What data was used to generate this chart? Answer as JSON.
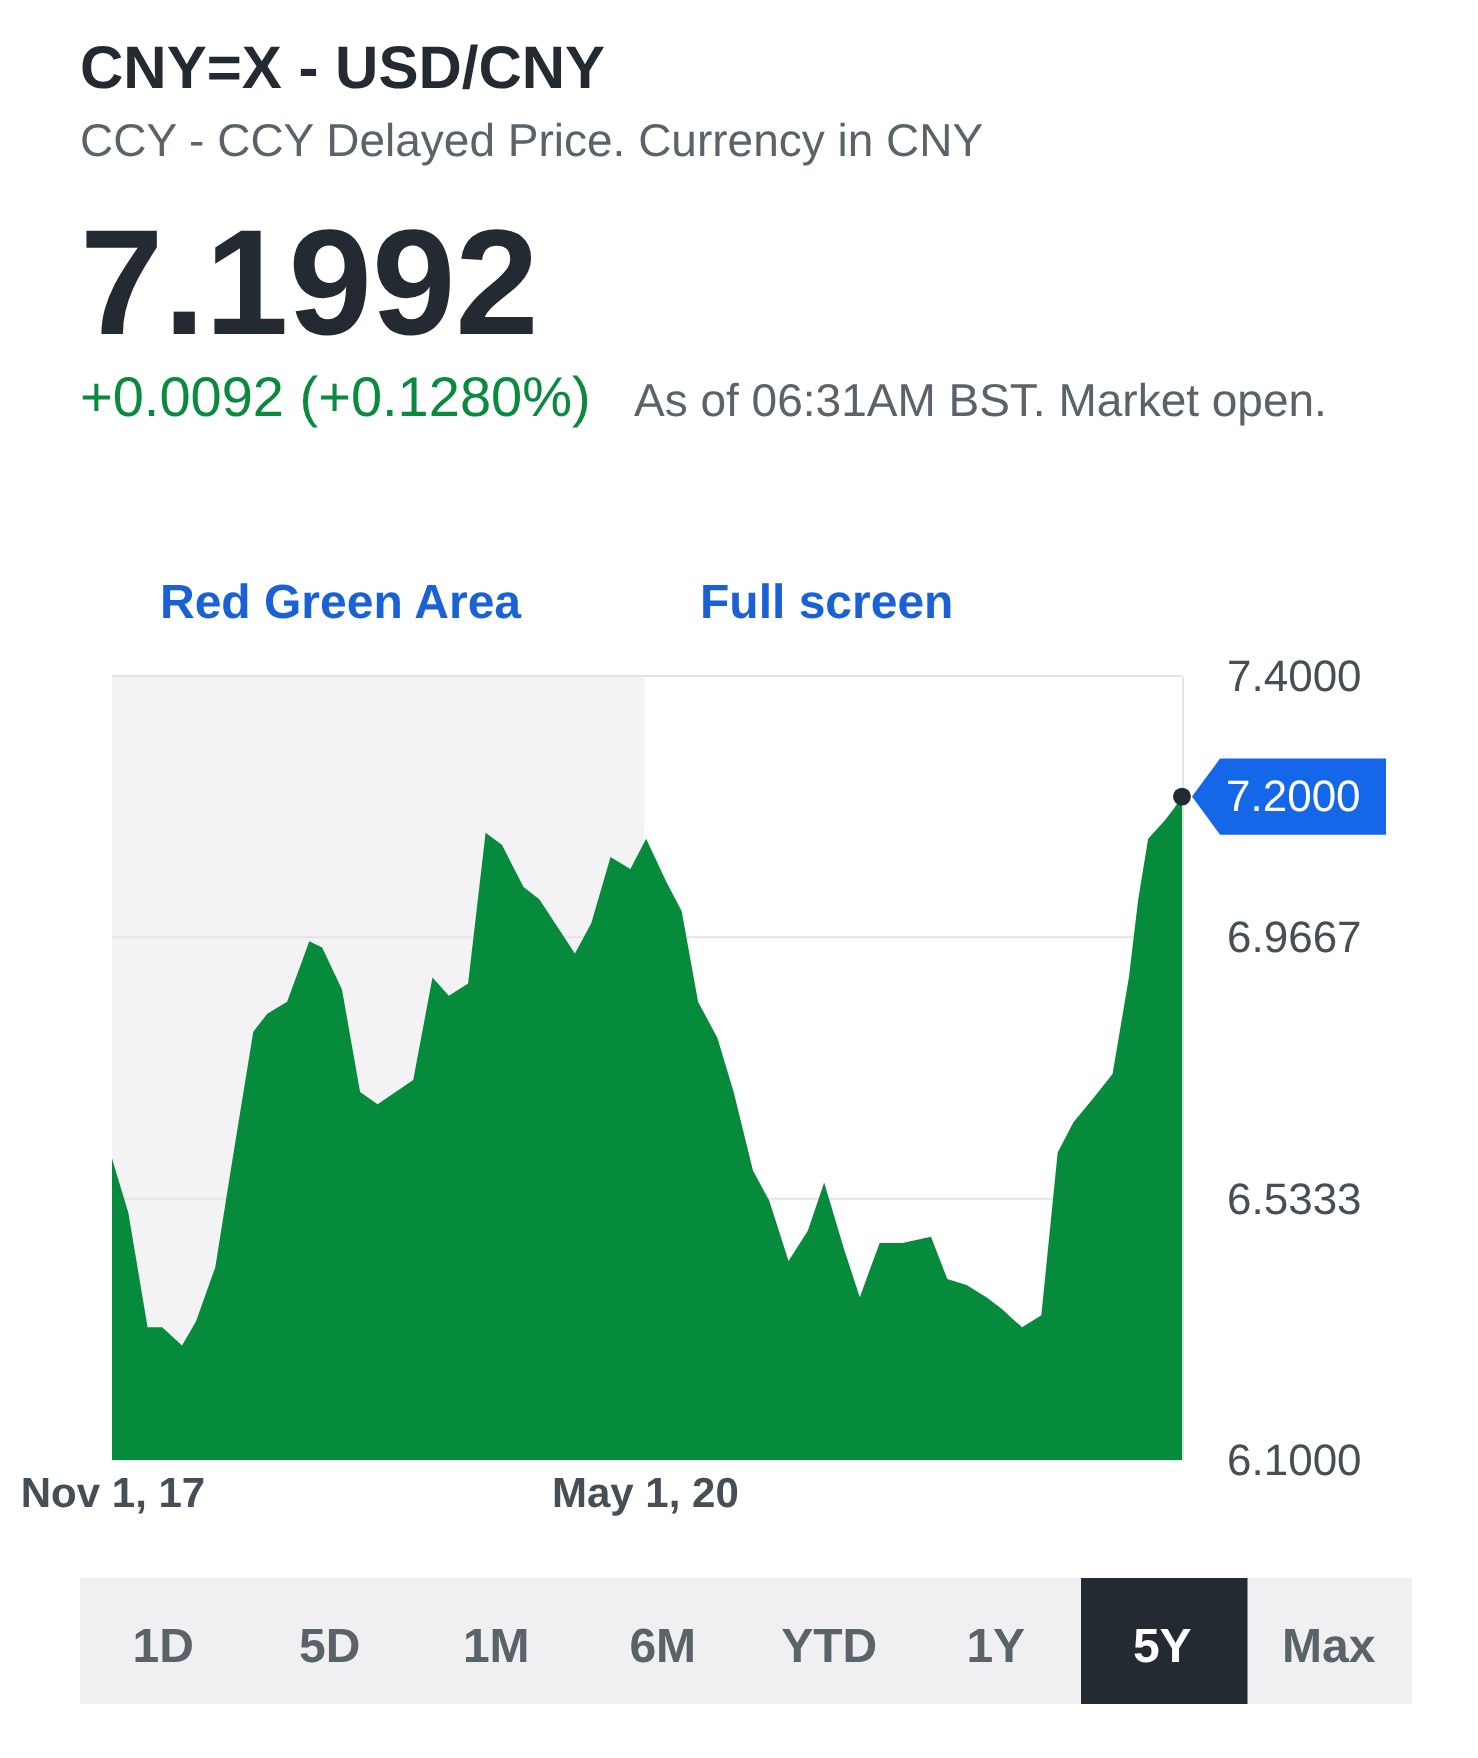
{
  "chart_data": {
    "type": "area",
    "title": "CNY=X - USD/CNY",
    "subtitle": "CCY - CCY Delayed Price. Currency in CNY",
    "x": [
      "2017-11-01",
      "2017-11-29",
      "2018-01-01",
      "2018-01-26",
      "2018-03-01",
      "2018-03-25",
      "2018-04-27",
      "2018-05-25",
      "2018-07-01",
      "2018-07-25",
      "2018-08-28",
      "2018-10-05",
      "2018-10-27",
      "2018-11-30",
      "2018-12-31",
      "2019-01-30",
      "2019-04-01",
      "2019-05-04",
      "2019-06-01",
      "2019-07-04",
      "2019-08-03",
      "2019-08-31",
      "2019-10-07",
      "2019-11-03",
      "2020-01-03",
      "2020-01-31",
      "2020-03-04",
      "2020-04-07",
      "2020-05-04",
      "2020-06-07",
      "2020-07-04",
      "2020-08-01",
      "2020-09-03",
      "2020-10-01",
      "2020-11-03",
      "2020-12-01",
      "2021-01-03",
      "2021-02-05",
      "2021-03-05",
      "2021-04-08",
      "2021-05-05",
      "2021-06-08",
      "2021-07-17",
      "2021-09-04",
      "2021-10-02",
      "2021-11-04",
      "2021-12-08",
      "2022-01-04",
      "2022-02-07",
      "2022-03-12",
      "2022-04-09",
      "2022-05-06",
      "2022-06-09",
      "2022-07-12",
      "2022-08-09",
      "2022-08-25",
      "2022-09-11",
      "2022-10-09",
      "2022-10-25",
      "2022-11-08"
    ],
    "values": [
      6.6,
      6.51,
      6.32,
      6.32,
      6.29,
      6.33,
      6.42,
      6.59,
      6.81,
      6.84,
      6.86,
      6.96,
      6.95,
      6.88,
      6.71,
      6.69,
      6.73,
      6.9,
      6.87,
      6.89,
      7.14,
      7.12,
      7.05,
      7.03,
      6.94,
      6.99,
      7.1,
      7.08,
      7.13,
      7.06,
      7.01,
      6.86,
      6.8,
      6.71,
      6.58,
      6.53,
      6.43,
      6.48,
      6.56,
      6.45,
      6.37,
      6.46,
      6.46,
      6.47,
      6.4,
      6.39,
      6.37,
      6.35,
      6.32,
      6.34,
      6.61,
      6.66,
      6.7,
      6.74,
      6.9,
      7.03,
      7.13,
      7.16,
      7.18,
      7.2
    ],
    "color": "#068a3c",
    "xlim": [
      "2017-11-01",
      "2022-11-08"
    ],
    "xticks": [
      {
        "value": "2017-11-01",
        "label": "Nov 1, 17"
      },
      {
        "value": "2020-05-01",
        "label": "May 1, 20"
      }
    ],
    "ylim": [
      6.1,
      7.4
    ],
    "yticks": [
      {
        "value": 6.1,
        "label": "6.1000"
      },
      6.5333,
      6.9667,
      {
        "value": 7.4,
        "label": "7.4000"
      }
    ],
    "grid": "y",
    "bands": [
      {
        "axis": "x",
        "from": "2017-11-01",
        "to": "2020-05-01",
        "color": "#f3f3f5"
      }
    ],
    "annotations": [
      "7.1992",
      "+0.0092 (+0.1280%)",
      "As of 06:31AM BST. Market open.",
      "Red Green Area",
      "Full screen",
      "1D",
      "5D",
      "1M",
      "6M",
      "YTD",
      "1Y",
      "5Y",
      "Max",
      {
        "text": "7.2000",
        "x": "2022-11-08",
        "y": 7.2
      }
    ]
  }
}
